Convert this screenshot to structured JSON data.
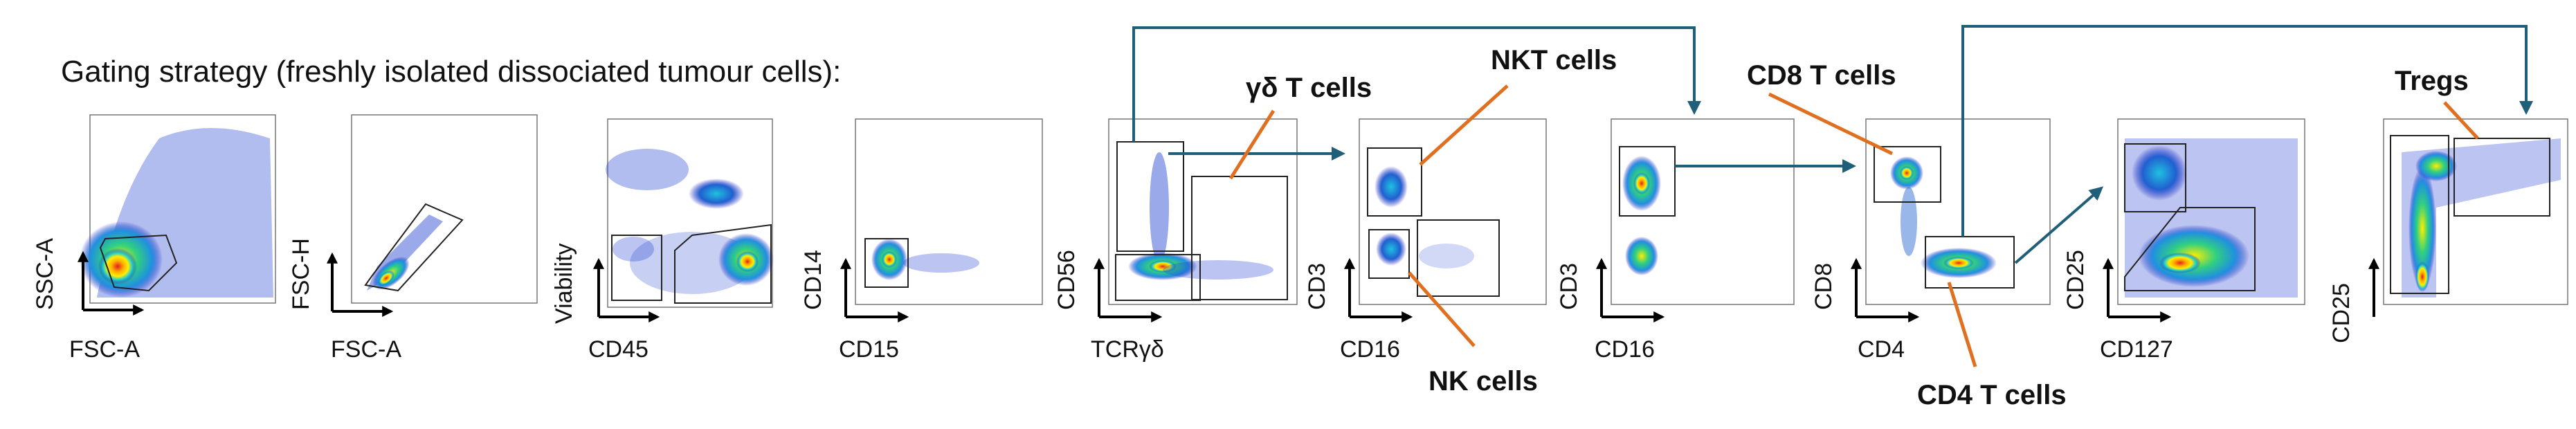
{
  "title": "Gating strategy (freshly isolated dissociated tumour cells):",
  "colors": {
    "flow_arrow": "#1f5f7a",
    "label_pointer": "#e07020",
    "density_low": "#2020c0",
    "density_mid": "#20c0c0",
    "density_high": "#ffdd00",
    "density_peak": "#e02020"
  },
  "plots": [
    {
      "id": "p1",
      "x_label": "FSC-A",
      "y_label": "SSC-A"
    },
    {
      "id": "p2",
      "x_label": "FSC-A",
      "y_label": "FSC-H"
    },
    {
      "id": "p3",
      "x_label": "CD45",
      "y_label": "Viability"
    },
    {
      "id": "p4",
      "x_label": "CD15",
      "y_label": "CD14"
    },
    {
      "id": "p5",
      "x_label": "TCRγδ",
      "y_label": "CD56"
    },
    {
      "id": "p6",
      "x_label": "CD16",
      "y_label": "CD3"
    },
    {
      "id": "p7",
      "x_label": "CD16",
      "y_label": "CD3"
    },
    {
      "id": "p8",
      "x_label": "CD4",
      "y_label": "CD8"
    },
    {
      "id": "p9",
      "x_label": "CD127",
      "y_label": "CD25"
    },
    {
      "id": "p10",
      "x_label": "",
      "y_label": "CD25"
    }
  ],
  "populations": {
    "gd_t": "γδ T cells",
    "nkt": "NKT cells",
    "nk": "NK cells",
    "cd8_t": "CD8 T cells",
    "cd4_t": "CD4 T cells",
    "tregs": "Tregs"
  }
}
